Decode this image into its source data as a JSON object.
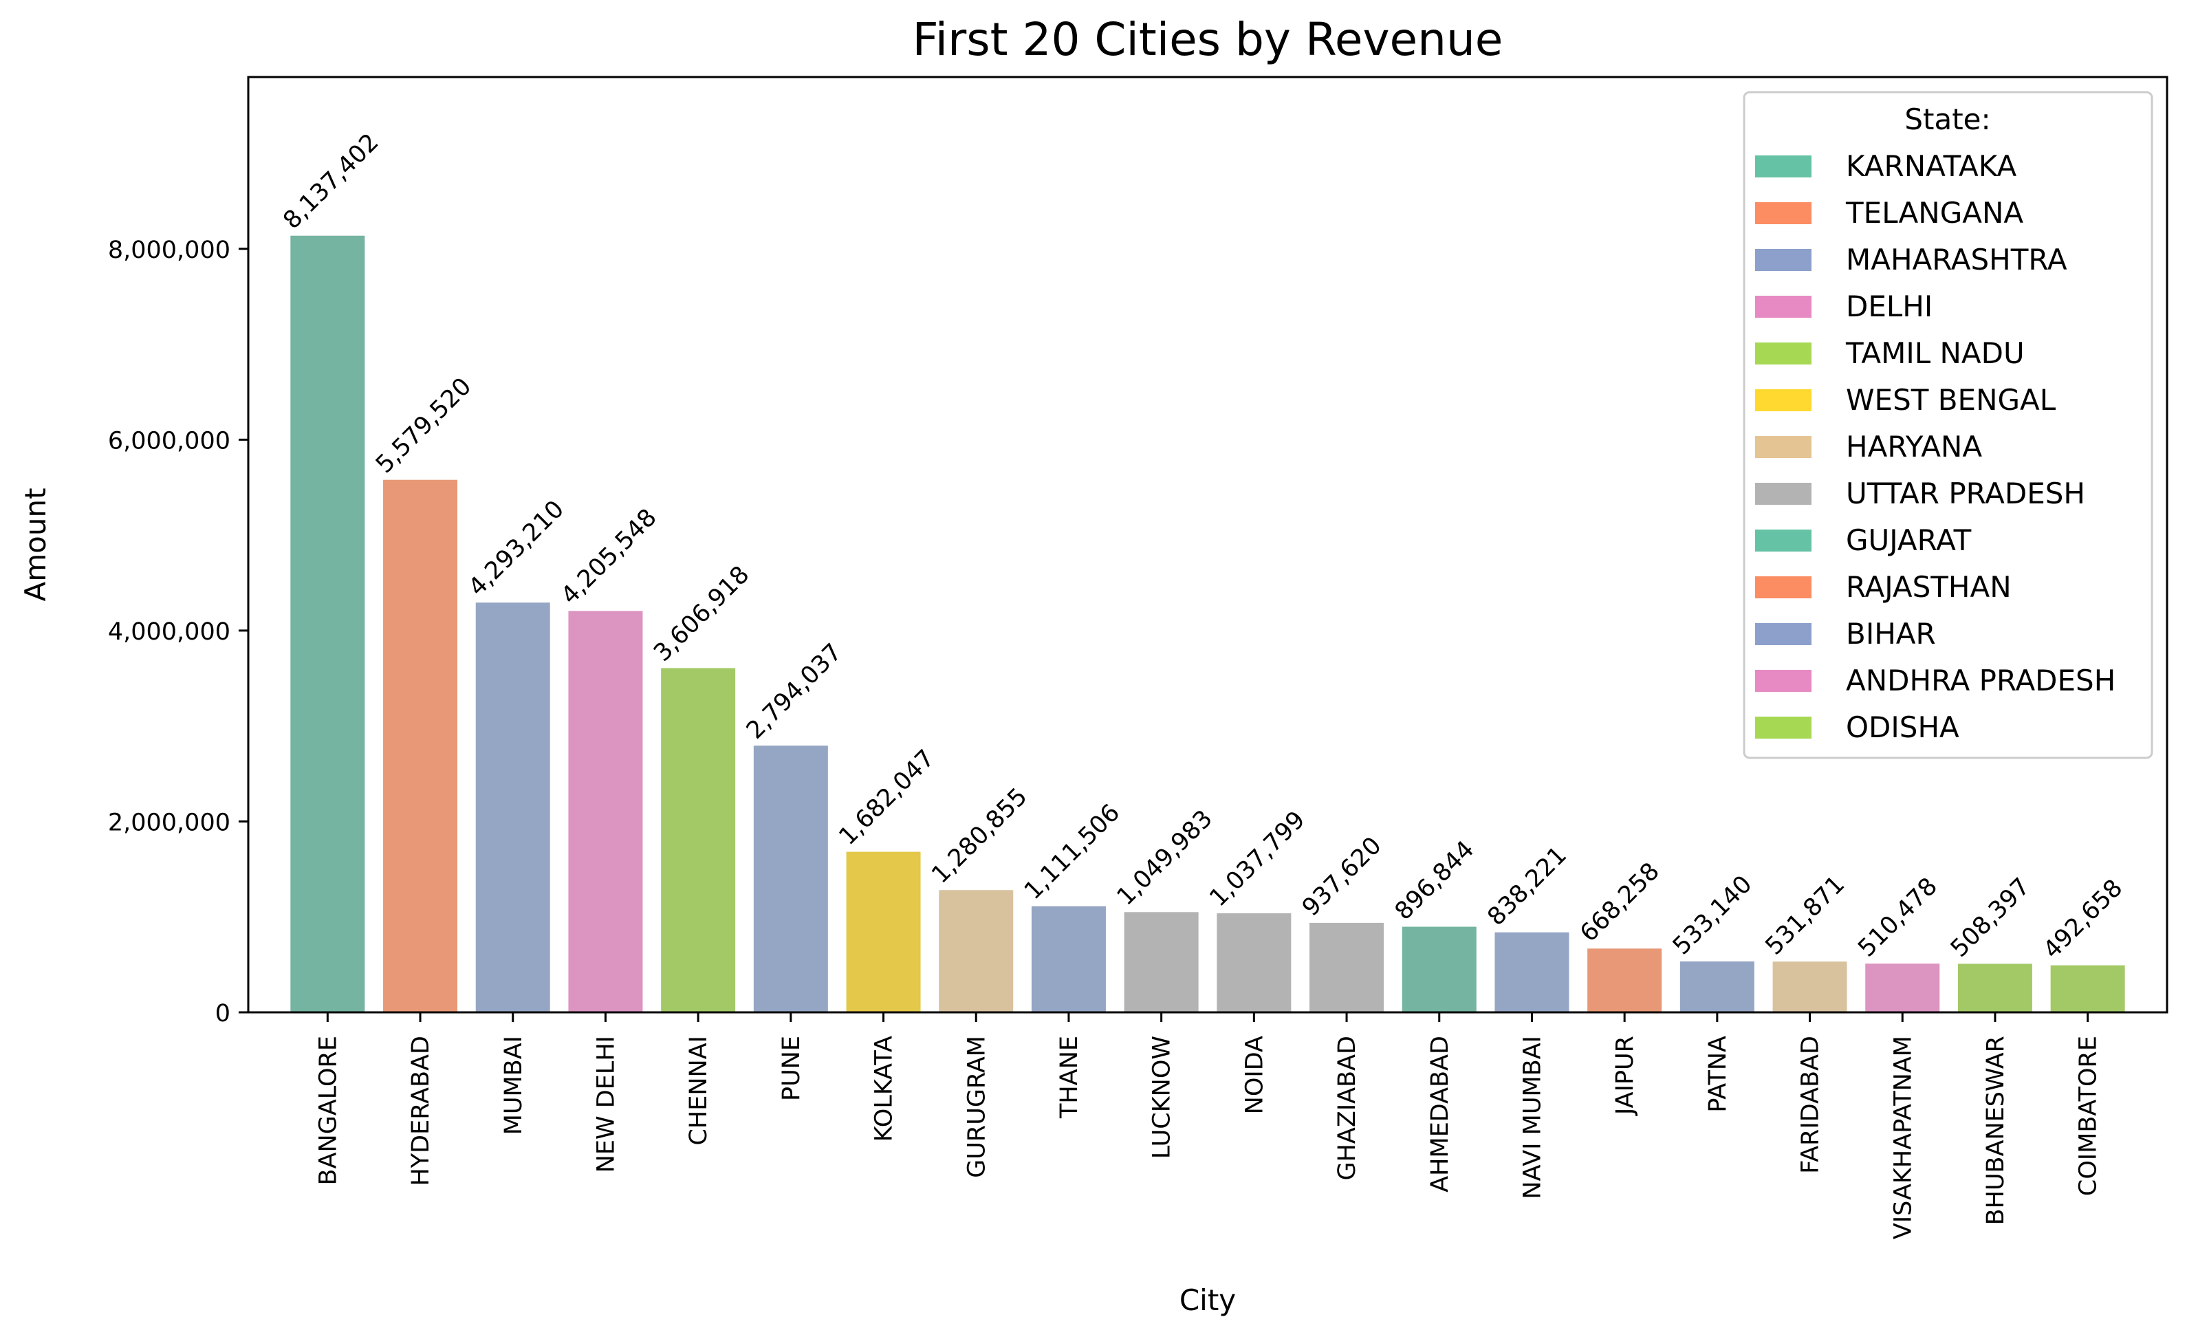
{
  "chart_data": {
    "type": "bar",
    "title": "First 20 Cities by Revenue",
    "xlabel": "City",
    "ylabel": "Amount",
    "ylim": [
      0,
      9800000
    ],
    "yticks": [
      0,
      2000000,
      4000000,
      6000000,
      8000000
    ],
    "ytick_labels": [
      "0",
      "2,000,000",
      "4,000,000",
      "6,000,000",
      "8,000,000"
    ],
    "grid": false,
    "legend": {
      "title": "State:",
      "placement": "top-right",
      "entries": [
        {
          "label": "KARNATAKA",
          "color": "#66c2a5"
        },
        {
          "label": "TELANGANA",
          "color": "#fc8d62"
        },
        {
          "label": "MAHARASHTRA",
          "color": "#8da0cb"
        },
        {
          "label": "DELHI",
          "color": "#e78ac3"
        },
        {
          "label": "TAMIL NADU",
          "color": "#a6d854"
        },
        {
          "label": "WEST BENGAL",
          "color": "#ffd92f"
        },
        {
          "label": "HARYANA",
          "color": "#e5c494"
        },
        {
          "label": "UTTAR PRADESH",
          "color": "#b3b3b3"
        },
        {
          "label": "GUJARAT",
          "color": "#66c2a5"
        },
        {
          "label": "RAJASTHAN",
          "color": "#fc8d62"
        },
        {
          "label": "BIHAR",
          "color": "#8da0cb"
        },
        {
          "label": "ANDHRA PRADESH",
          "color": "#e78ac3"
        },
        {
          "label": "ODISHA",
          "color": "#a6d854"
        }
      ]
    },
    "categories": [
      "BANGALORE",
      "HYDERABAD",
      "MUMBAI",
      "NEW DELHI",
      "CHENNAI",
      "PUNE",
      "KOLKATA",
      "GURUGRAM",
      "THANE",
      "LUCKNOW",
      "NOIDA",
      "GHAZIABAD",
      "AHMEDABAD",
      "NAVI MUMBAI",
      "JAIPUR",
      "PATNA",
      "FARIDABAD",
      "VISAKHAPATNAM",
      "BHUBANESWAR",
      "COIMBATORE"
    ],
    "values": [
      8137402,
      5579520,
      4293210,
      4205548,
      3606918,
      2794037,
      1682047,
      1280855,
      1111506,
      1049983,
      1037799,
      937620,
      896844,
      838221,
      668258,
      533140,
      531871,
      510478,
      508397,
      492658
    ],
    "value_labels": [
      "8,137,402",
      "5,579,520",
      "4,293,210",
      "4,205,548",
      "3,606,918",
      "2,794,037",
      "1,682,047",
      "1,280,855",
      "1,111,506",
      "1,049,983",
      "1,037,799",
      "937,620",
      "896,844",
      "838,221",
      "668,258",
      "533,140",
      "531,871",
      "510,478",
      "508,397",
      "492,658"
    ],
    "bar_colors": [
      "#74b4a0",
      "#e89876",
      "#95a5c4",
      "#dc94c1",
      "#a3c966",
      "#95a5c4",
      "#e3c84a",
      "#d8c29e",
      "#95a5c4",
      "#b3b3b3",
      "#b3b3b3",
      "#b3b3b3",
      "#74b4a0",
      "#95a5c4",
      "#e89876",
      "#95a5c4",
      "#d8c29e",
      "#dc94c1",
      "#a3c966",
      "#a3c966"
    ]
  }
}
